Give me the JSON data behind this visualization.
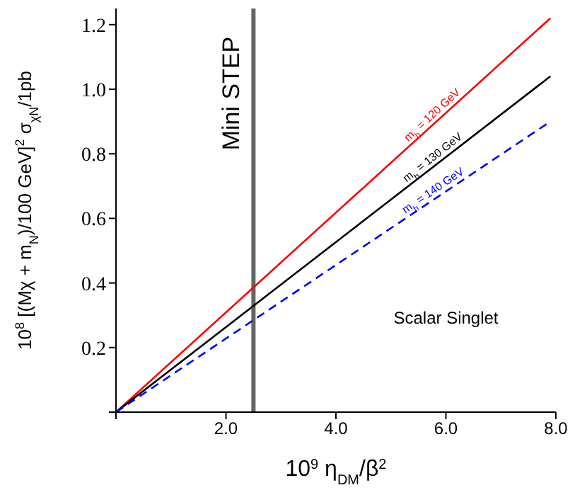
{
  "chart_data": {
    "type": "line",
    "xlabel": "10$^{9}$ η$_{DM}$/β$^{2}$",
    "ylabel": "10$^{8}$ [(Mχ + m$_{N}$)/100 GeV]$^{2}$ σ$_{χN}$/1pb",
    "xlim": [
      0,
      8
    ],
    "ylim": [
      0,
      1.25
    ],
    "xticks": [
      {
        "value": 0,
        "label": null
      },
      {
        "value": 2,
        "label": "2.0"
      },
      {
        "value": 4,
        "label": "4.0"
      },
      {
        "value": 6,
        "label": "6.0"
      },
      {
        "value": 8,
        "label": "8.0"
      }
    ],
    "yticks": [
      {
        "value": 0,
        "label": null
      },
      {
        "value": 0.2,
        "label": "0.2"
      },
      {
        "value": 0.4,
        "label": "0.4"
      },
      {
        "value": 0.6,
        "label": "0.6"
      },
      {
        "value": 0.8,
        "label": "0.8"
      },
      {
        "value": 1,
        "label": "1.0"
      },
      {
        "value": 1.2,
        "label": "1.2"
      }
    ],
    "x": [
      0,
      7.9
    ],
    "series": [
      {
        "name": "m$_{h}$ = 120 GeV",
        "color": "#ff0000",
        "values": [
          0,
          1.22
        ]
      },
      {
        "name": "m$_{h}$ = 130 GeV",
        "color": "#000000",
        "values": [
          0,
          1.04
        ]
      },
      {
        "name": "m$_{h}$ = 140 GeV",
        "color": "#0000ff",
        "line_style": "dashed",
        "values": [
          0,
          0.9
        ]
      }
    ],
    "ref_lines": [
      {
        "axis": "x",
        "value": 2.5,
        "label": "Mini STEP",
        "color": "#666666"
      }
    ],
    "annotations": [
      "Scalar Singlet"
    ],
    "grid": false,
    "legend": false
  }
}
